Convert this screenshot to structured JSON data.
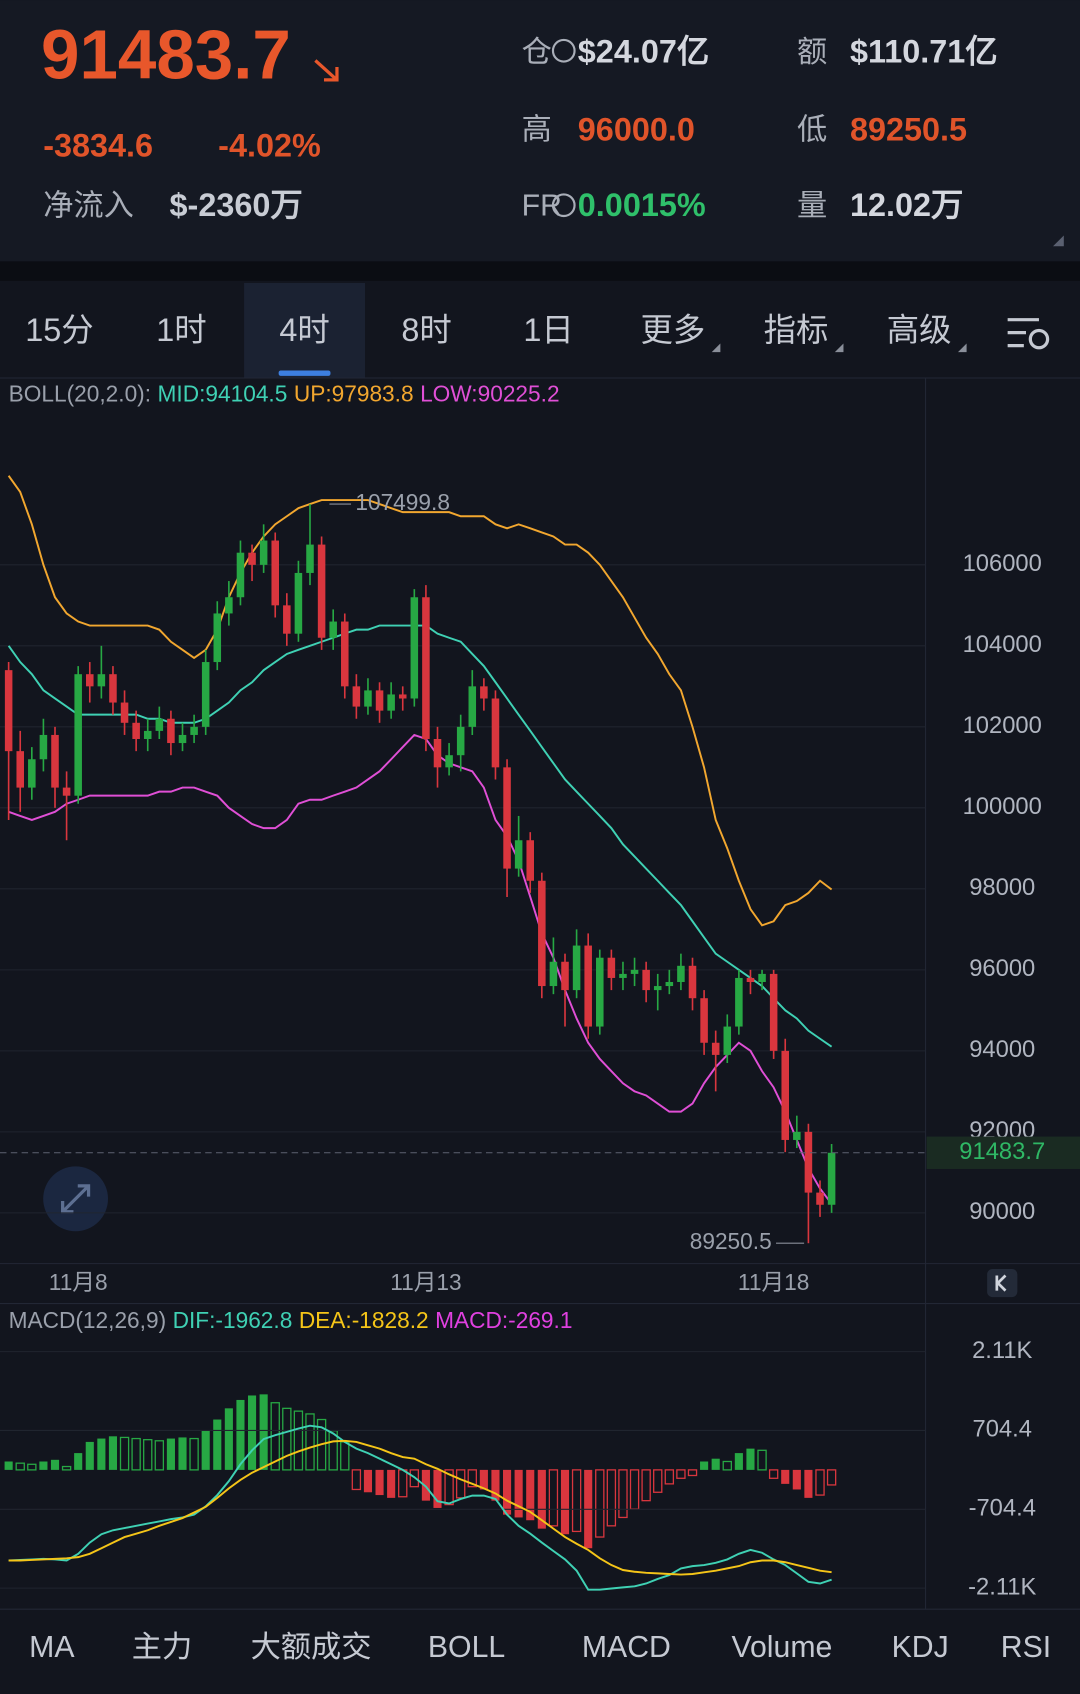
{
  "header": {
    "price": "91483.7",
    "change": "-3834.6",
    "change_pct": "-4.02%",
    "net_inflow_label": "净流入",
    "net_inflow": "$-2360万",
    "stats": [
      {
        "label": "仓",
        "value": "$24.07亿"
      },
      {
        "label": "额",
        "value": "$110.71亿"
      },
      {
        "label": "高",
        "value": "96000.0"
      },
      {
        "label": "低",
        "value": "89250.5"
      },
      {
        "label": "FR",
        "value": "0.0015%"
      },
      {
        "label": "量",
        "value": "12.02万"
      }
    ]
  },
  "tabs": {
    "items": [
      "15分",
      "1时",
      "4时",
      "8时",
      "1日",
      "更多",
      "指标",
      "高级"
    ],
    "active": 2
  },
  "chart_data": [
    {
      "type": "candlestick",
      "legend_title": "BOLL(20,2.0):",
      "up_color": "#27a844",
      "down_color": "#d9363e",
      "categories": [
        null,
        null,
        null,
        null,
        null,
        null,
        "11月8",
        null,
        null,
        null,
        null,
        null,
        null,
        null,
        null,
        null,
        null,
        null,
        null,
        null,
        null,
        null,
        null,
        null,
        null,
        null,
        null,
        null,
        null,
        null,
        null,
        null,
        null,
        null,
        null,
        null,
        "11月13",
        null,
        null,
        null,
        null,
        null,
        null,
        null,
        null,
        null,
        null,
        null,
        null,
        null,
        null,
        null,
        null,
        null,
        null,
        null,
        null,
        null,
        null,
        null,
        null,
        null,
        null,
        null,
        null,
        null,
        "11月18",
        null,
        null,
        null,
        null,
        null
      ],
      "open": [
        103400,
        101400,
        100500,
        101200,
        101800,
        100500,
        100300,
        103300,
        103000,
        103300,
        102600,
        102100,
        101700,
        101900,
        102200,
        101600,
        101800,
        102000,
        103600,
        104800,
        105200,
        106300,
        106000,
        106600,
        105000,
        104300,
        105800,
        106500,
        104200,
        104600,
        103000,
        102500,
        102900,
        102400,
        102800,
        102700,
        105200,
        101700,
        101000,
        101300,
        102000,
        103000,
        102700,
        101000,
        98500,
        99200,
        98200,
        95600,
        96200,
        95500,
        96600,
        94600,
        96300,
        95800,
        95900,
        96000,
        95500,
        95600,
        95700,
        96100,
        95300,
        94200,
        93900,
        94600,
        95800,
        95700,
        95900,
        94000,
        91800,
        92000,
        90500,
        90200
      ],
      "high": [
        103600,
        101900,
        101500,
        102200,
        102000,
        100900,
        103500,
        103600,
        104000,
        103500,
        102900,
        102400,
        102200,
        102500,
        102400,
        102100,
        102300,
        103900,
        105100,
        105600,
        106600,
        106500,
        107000,
        106800,
        105300,
        106100,
        107499.8,
        106700,
        104900,
        104800,
        103300,
        103200,
        103100,
        103100,
        103000,
        105400,
        105500,
        102000,
        101600,
        102300,
        103400,
        103200,
        102900,
        101200,
        99800,
        99400,
        98400,
        96800,
        96400,
        97000,
        96900,
        96500,
        96500,
        96200,
        96300,
        96200,
        95900,
        96000,
        96400,
        96300,
        95500,
        94500,
        94900,
        96000,
        96000,
        96000,
        96000,
        94300,
        92400,
        92200,
        90800,
        91700
      ],
      "low": [
        99700,
        99900,
        100200,
        100900,
        100000,
        99200,
        100100,
        102600,
        102700,
        102300,
        101800,
        101400,
        101400,
        101700,
        101300,
        101400,
        101600,
        101800,
        103400,
        104500,
        105000,
        105600,
        105800,
        104700,
        104000,
        104100,
        105500,
        103900,
        103900,
        102700,
        102200,
        102300,
        102100,
        102200,
        102400,
        102500,
        101400,
        100500,
        100800,
        100900,
        101800,
        102400,
        100700,
        97800,
        98300,
        97900,
        95300,
        95400,
        94600,
        95300,
        94300,
        94400,
        95500,
        95500,
        95600,
        95200,
        95000,
        95400,
        95500,
        95000,
        93900,
        93000,
        93700,
        94400,
        95400,
        95500,
        93800,
        91500,
        91600,
        89250.5,
        89900,
        90000
      ],
      "close": [
        101400,
        100500,
        101200,
        101800,
        100500,
        100300,
        103300,
        103000,
        103300,
        102600,
        102100,
        101700,
        101900,
        102200,
        101600,
        101800,
        102000,
        103600,
        104800,
        105200,
        106300,
        106000,
        106600,
        105000,
        104300,
        105800,
        106500,
        104200,
        104600,
        103000,
        102500,
        102900,
        102400,
        102800,
        102700,
        105200,
        101700,
        101000,
        101300,
        102000,
        103000,
        102700,
        101000,
        98500,
        99200,
        98200,
        95600,
        96200,
        95500,
        96600,
        94600,
        96300,
        95800,
        95900,
        96000,
        95500,
        95600,
        95700,
        96100,
        95300,
        94200,
        93900,
        94600,
        95800,
        95700,
        95900,
        94000,
        91800,
        92000,
        90500,
        90200,
        91483.7
      ],
      "series": [
        {
          "label": "MID:94104.5",
          "color": "#3fd1b4",
          "values": [
            104000,
            103600,
            103300,
            102900,
            102700,
            102500,
            102300,
            102300,
            102300,
            102300,
            102300,
            102300,
            102200,
            102200,
            102100,
            102100,
            102100,
            102200,
            102400,
            102600,
            102900,
            103100,
            103400,
            103600,
            103800,
            103900,
            104000,
            104100,
            104200,
            104300,
            104400,
            104400,
            104500,
            104500,
            104500,
            104500,
            104500,
            104300,
            104200,
            104100,
            103800,
            103500,
            103100,
            102700,
            102300,
            101900,
            101500,
            101100,
            100700,
            100400,
            100100,
            99800,
            99500,
            99100,
            98800,
            98500,
            98200,
            97900,
            97600,
            97200,
            96800,
            96400,
            96200,
            96000,
            95800,
            95600,
            95300,
            95000,
            94800,
            94500,
            94300,
            94104.5
          ]
        },
        {
          "label": "UP:97983.8",
          "color": "#f2a72f",
          "values": [
            108200,
            107800,
            107000,
            106000,
            105200,
            104800,
            104600,
            104500,
            104500,
            104500,
            104500,
            104500,
            104500,
            104400,
            104100,
            103900,
            103700,
            103900,
            104400,
            105200,
            105800,
            106300,
            106700,
            107000,
            107200,
            107400,
            107500,
            107600,
            107600,
            107600,
            107600,
            107600,
            107500,
            107400,
            107300,
            107300,
            107300,
            107300,
            107300,
            107200,
            107200,
            107200,
            107000,
            106900,
            107000,
            106900,
            106800,
            106700,
            106500,
            106500,
            106300,
            106000,
            105600,
            105200,
            104700,
            104200,
            103800,
            103300,
            102900,
            102000,
            101000,
            99700,
            99000,
            98200,
            97500,
            97100,
            97200,
            97600,
            97700,
            97900,
            98200,
            97983.8
          ]
        },
        {
          "label": "LOW:90225.2",
          "color": "#e04fd6",
          "values": [
            99900,
            99800,
            99700,
            99800,
            99900,
            100100,
            100200,
            100300,
            100300,
            100300,
            100300,
            100300,
            100300,
            100400,
            100400,
            100500,
            100500,
            100400,
            100300,
            100000,
            99800,
            99600,
            99500,
            99500,
            99700,
            100100,
            100200,
            100200,
            100300,
            100400,
            100500,
            100700,
            100900,
            101200,
            101500,
            101800,
            101700,
            101300,
            101100,
            101000,
            100900,
            100500,
            99700,
            99300,
            98700,
            97800,
            96900,
            96300,
            95500,
            94800,
            94200,
            93800,
            93500,
            93200,
            93000,
            92900,
            92700,
            92500,
            92500,
            92700,
            93200,
            93600,
            93900,
            94200,
            94000,
            93500,
            93100,
            92500,
            91800,
            91100,
            90600,
            90225.2
          ]
        }
      ],
      "ylim": [
        88747,
        110613
      ],
      "yticks": [
        90000,
        92000,
        94000,
        96000,
        98000,
        100000,
        102000,
        104000,
        106000
      ],
      "grid": true
    },
    {
      "type": "macd",
      "legend_title": "MACD(12,26,9)",
      "up_color": "#27a844",
      "down_color": "#d9363e",
      "histogram": {
        "label": "MACD:-269.1",
        "color": "#e040e0",
        "values": [
          150,
          120,
          100,
          150,
          180,
          60,
          300,
          500,
          560,
          600,
          580,
          560,
          540,
          520,
          560,
          580,
          560,
          700,
          900,
          1100,
          1250,
          1330,
          1350,
          1200,
          1100,
          1050,
          1000,
          900,
          700,
          500,
          -350,
          -400,
          -450,
          -500,
          -480,
          -300,
          -550,
          -680,
          -620,
          -500,
          -300,
          -350,
          -550,
          -800,
          -850,
          -900,
          -1050,
          -1000,
          -1150,
          -1100,
          -1400,
          -1200,
          -1000,
          -850,
          -700,
          -550,
          -400,
          -250,
          -150,
          -100,
          150,
          200,
          150,
          300,
          380,
          350,
          -150,
          -250,
          -350,
          -500,
          -450,
          -269.1
        ]
      },
      "series": [
        {
          "label": "DIF:-1962.8",
          "color": "#3fd1b4",
          "values": [
            -1620,
            -1610,
            -1600,
            -1590,
            -1600,
            -1620,
            -1500,
            -1300,
            -1150,
            -1080,
            -1040,
            -1000,
            -960,
            -920,
            -880,
            -850,
            -800,
            -650,
            -450,
            -200,
            100,
            350,
            550,
            620,
            680,
            740,
            790,
            760,
            650,
            500,
            380,
            300,
            200,
            100,
            0,
            -130,
            -300,
            -560,
            -600,
            -520,
            -460,
            -460,
            -520,
            -800,
            -1000,
            -1140,
            -1300,
            -1450,
            -1600,
            -1800,
            -2140,
            -2140,
            -2120,
            -2100,
            -2080,
            -2030,
            -1950,
            -1880,
            -1760,
            -1720,
            -1700,
            -1660,
            -1600,
            -1500,
            -1430,
            -1480,
            -1600,
            -1700,
            -1850,
            -2000,
            -2030,
            -1962.8
          ]
        },
        {
          "label": "DEA:-1828.2",
          "color": "#f5c518",
          "values": [
            -1620,
            -1620,
            -1610,
            -1600,
            -1590,
            -1580,
            -1560,
            -1500,
            -1400,
            -1300,
            -1200,
            -1140,
            -1080,
            -1000,
            -930,
            -860,
            -760,
            -660,
            -500,
            -330,
            -180,
            -50,
            50,
            150,
            250,
            330,
            400,
            460,
            510,
            520,
            500,
            440,
            380,
            300,
            230,
            200,
            100,
            20,
            -80,
            -170,
            -250,
            -330,
            -420,
            -550,
            -650,
            -750,
            -900,
            -1050,
            -1200,
            -1320,
            -1430,
            -1580,
            -1700,
            -1790,
            -1820,
            -1840,
            -1850,
            -1860,
            -1870,
            -1860,
            -1830,
            -1800,
            -1760,
            -1720,
            -1650,
            -1620,
            -1620,
            -1650,
            -1700,
            -1750,
            -1800,
            -1828.2
          ]
        }
      ],
      "ylim": [
        -2490,
        2818
      ],
      "yticks": [
        {
          "value": 2113.2,
          "label": "2.11K"
        },
        704.4,
        -704.4,
        {
          "value": -2113.2,
          "label": "-2.11K"
        }
      ],
      "grid": true
    }
  ],
  "indicator_tabs": {
    "items": [
      "MA",
      "主力",
      "大额成交",
      "BOLL",
      "MACD",
      "Volume",
      "KDJ",
      "RSI"
    ],
    "active": [
      3,
      4
    ]
  }
}
